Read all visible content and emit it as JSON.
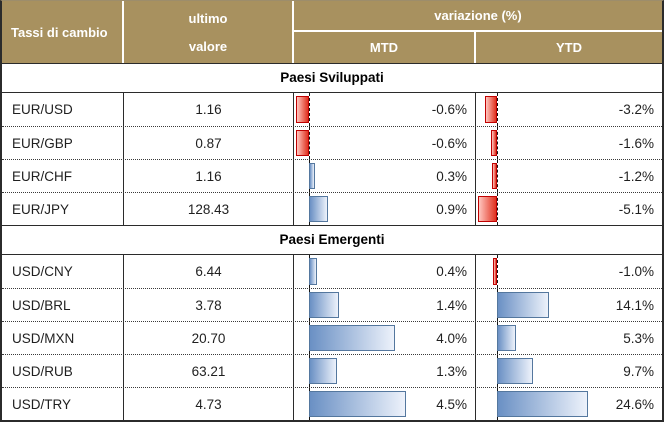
{
  "header": {
    "col_pair": "Tassi di cambio",
    "col_value_line1": "ultimo",
    "col_value_line2": "valore",
    "col_variation": "variazione (%)",
    "col_mtd": "MTD",
    "col_ytd": "YTD"
  },
  "chart_data": {
    "type": "table",
    "title": "Tassi di cambio",
    "columns": [
      "Tassi di cambio",
      "ultimo valore",
      "variazione (%) MTD",
      "variazione (%) YTD"
    ],
    "bar_axes": {
      "mtd": {
        "min": -0.6,
        "max": 4.5
      },
      "ytd": {
        "min": -5.1,
        "max": 24.6
      }
    },
    "sections": [
      {
        "title": "Paesi Sviluppati",
        "rows": [
          {
            "pair": "EUR/USD",
            "value": "1.16",
            "mtd": -0.6,
            "mtd_label": "-0.6%",
            "ytd": -3.2,
            "ytd_label": "-3.2%"
          },
          {
            "pair": "EUR/GBP",
            "value": "0.87",
            "mtd": -0.6,
            "mtd_label": "-0.6%",
            "ytd": -1.6,
            "ytd_label": "-1.6%"
          },
          {
            "pair": "EUR/CHF",
            "value": "1.16",
            "mtd": 0.3,
            "mtd_label": "0.3%",
            "ytd": -1.2,
            "ytd_label": "-1.2%"
          },
          {
            "pair": "EUR/JPY",
            "value": "128.43",
            "mtd": 0.9,
            "mtd_label": "0.9%",
            "ytd": -5.1,
            "ytd_label": "-5.1%"
          }
        ]
      },
      {
        "title": "Paesi Emergenti",
        "rows": [
          {
            "pair": "USD/CNY",
            "value": "6.44",
            "mtd": 0.4,
            "mtd_label": "0.4%",
            "ytd": -1.0,
            "ytd_label": "-1.0%"
          },
          {
            "pair": "USD/BRL",
            "value": "3.78",
            "mtd": 1.4,
            "mtd_label": "1.4%",
            "ytd": 14.1,
            "ytd_label": "14.1%"
          },
          {
            "pair": "USD/MXN",
            "value": "20.70",
            "mtd": 4.0,
            "mtd_label": "4.0%",
            "ytd": 5.3,
            "ytd_label": "5.3%"
          },
          {
            "pair": "USD/RUB",
            "value": "63.21",
            "mtd": 1.3,
            "mtd_label": "1.3%",
            "ytd": 9.7,
            "ytd_label": "9.7%"
          },
          {
            "pair": "USD/TRY",
            "value": "4.73",
            "mtd": 4.5,
            "mtd_label": "4.5%",
            "ytd": 24.6,
            "ytd_label": "24.6%"
          }
        ]
      }
    ]
  },
  "colors": {
    "header_bg": "#A8915F",
    "header_text": "#FFFFFF",
    "negative_bar_start": "#E0301E",
    "negative_bar_end": "#FFC6BF",
    "negative_bar_border": "#C00000",
    "positive_bar_start": "#6A90C4",
    "positive_bar_end": "#EDF2FB",
    "positive_bar_border": "#54779E",
    "grid_line": "#2B2B2B",
    "text": "#1F1F1F"
  }
}
